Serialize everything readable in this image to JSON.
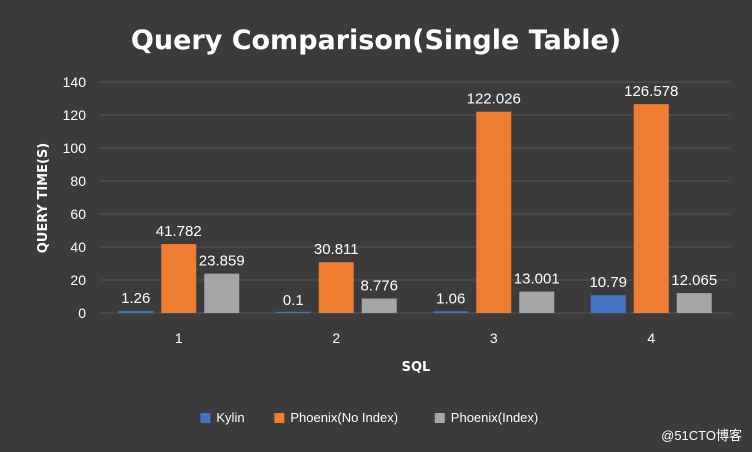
{
  "chart_data": {
    "type": "bar",
    "title": "Query Comparison(Single Table)",
    "xlabel": "SQL",
    "ylabel": "QUERY TIME(S)",
    "categories": [
      "1",
      "2",
      "3",
      "4"
    ],
    "ylim": [
      0,
      140
    ],
    "yticks": [
      0,
      20,
      40,
      60,
      80,
      100,
      120,
      140
    ],
    "grid": true,
    "legend_position": "bottom",
    "series": [
      {
        "name": "Kylin",
        "values": [
          1.26,
          0.1,
          1.06,
          10.79
        ],
        "labels": [
          "1.26",
          "0.1",
          "1.06",
          "10.79"
        ],
        "color": "#4472c4"
      },
      {
        "name": "Phoenix(No Index)",
        "values": [
          41.782,
          30.811,
          122.026,
          126.578
        ],
        "labels": [
          "41.782",
          "30.811",
          "122.026",
          "126.578"
        ],
        "color": "#ed7d31"
      },
      {
        "name": "Phoenix(Index)",
        "values": [
          23.859,
          8.776,
          13.001,
          12.065
        ],
        "labels": [
          "23.859",
          "8.776",
          "13.001",
          "12.065"
        ],
        "color": "#a5a5a5"
      }
    ]
  },
  "colors": {
    "background": "#3b3b3b",
    "gridline": "#555555",
    "text": "#ffffff"
  },
  "watermark": "@51CTO博客"
}
